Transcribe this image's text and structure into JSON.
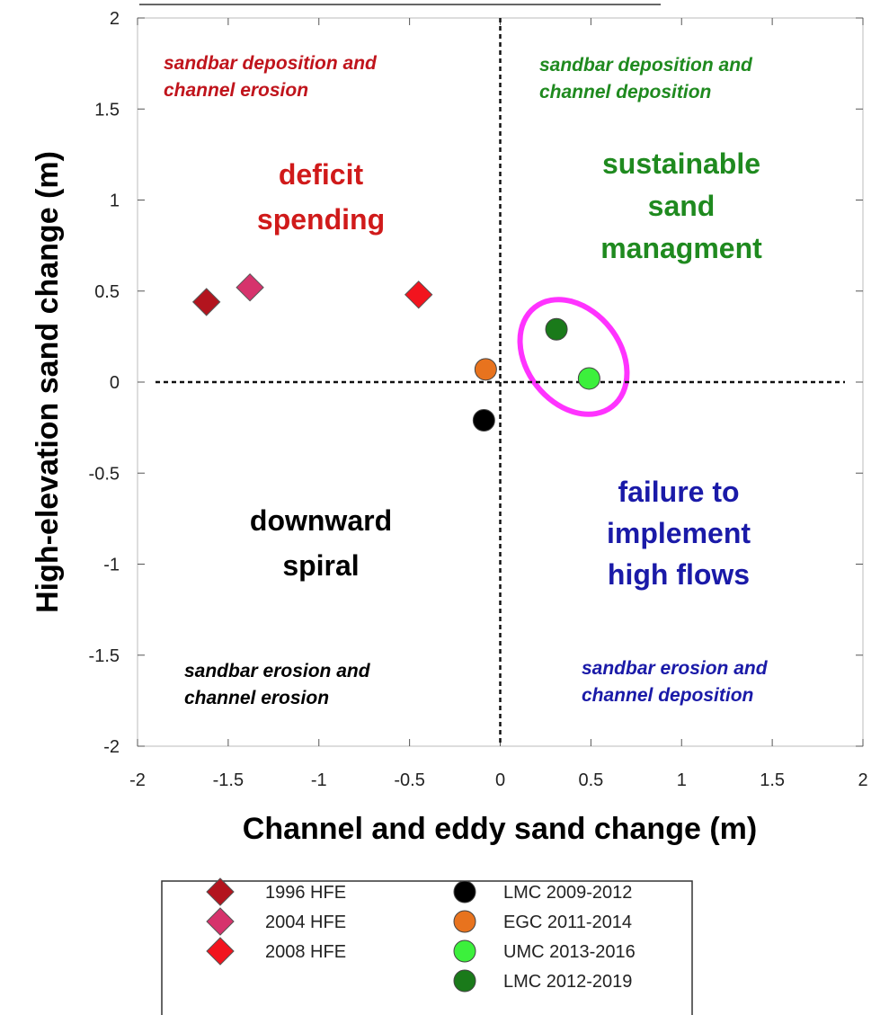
{
  "chart_data": {
    "type": "scatter",
    "xlabel": "Channel and eddy sand change (m)",
    "ylabel": "High-elevation sand change (m)",
    "xlim": [
      -2,
      2
    ],
    "ylim": [
      -2,
      2
    ],
    "xticks": [
      -2,
      -1.5,
      -1,
      -0.5,
      0,
      0.5,
      1,
      1.5,
      2
    ],
    "yticks": [
      -2,
      -1.5,
      -1,
      -0.5,
      0,
      0.5,
      1,
      1.5,
      2
    ],
    "grid": false,
    "reference_lines": {
      "x": 0,
      "y": 0
    },
    "legend": "bottom",
    "series": [
      {
        "name": "1996 HFE",
        "color": "#b3141e",
        "marker": "diamond",
        "x": [
          -1.62
        ],
        "y": [
          0.44
        ]
      },
      {
        "name": "2004 HFE",
        "color": "#d6336c",
        "marker": "diamond",
        "x": [
          -1.38
        ],
        "y": [
          0.52
        ]
      },
      {
        "name": "2008 HFE",
        "color": "#f2141e",
        "marker": "diamond",
        "x": [
          -0.45
        ],
        "y": [
          0.48
        ]
      },
      {
        "name": "LMC 2009-2012",
        "color": "#000000",
        "marker": "circle",
        "x": [
          -0.09
        ],
        "y": [
          -0.21
        ]
      },
      {
        "name": "EGC 2011-2014",
        "color": "#e8731e",
        "marker": "circle",
        "x": [
          -0.08
        ],
        "y": [
          0.07
        ]
      },
      {
        "name": "UMC 2013-2016",
        "color": "#3cf03c",
        "marker": "circle",
        "x": [
          0.49
        ],
        "y": [
          0.02
        ]
      },
      {
        "name": "LMC 2012-2019",
        "color": "#1a7a1a",
        "marker": "circle",
        "x": [
          0.31
        ],
        "y": [
          0.29
        ]
      }
    ],
    "annotations": [
      {
        "lines": [
          "sandbar deposition and",
          "channel erosion"
        ],
        "color": "#c0141c",
        "style": "italic"
      },
      {
        "lines": [
          "sandbar deposition and",
          "channel deposition"
        ],
        "color": "#1f8a1f",
        "style": "italic"
      },
      {
        "lines": [
          "deficit",
          "spending"
        ],
        "color": "#d01a1a",
        "style": "big"
      },
      {
        "lines": [
          "sustainable",
          "sand",
          "managment"
        ],
        "color": "#1f8a1f",
        "style": "big"
      },
      {
        "lines": [
          "downward",
          "spiral"
        ],
        "color": "#000000",
        "style": "big"
      },
      {
        "lines": [
          "failure to",
          "implement",
          "high flows"
        ],
        "color": "#1a1aa8",
        "style": "big"
      },
      {
        "lines": [
          "sandbar erosion and",
          "channel erosion"
        ],
        "color": "#000000",
        "style": "italic"
      },
      {
        "lines": [
          "sandbar erosion and",
          "channel deposition"
        ],
        "color": "#1a1aa8",
        "style": "italic"
      }
    ]
  }
}
